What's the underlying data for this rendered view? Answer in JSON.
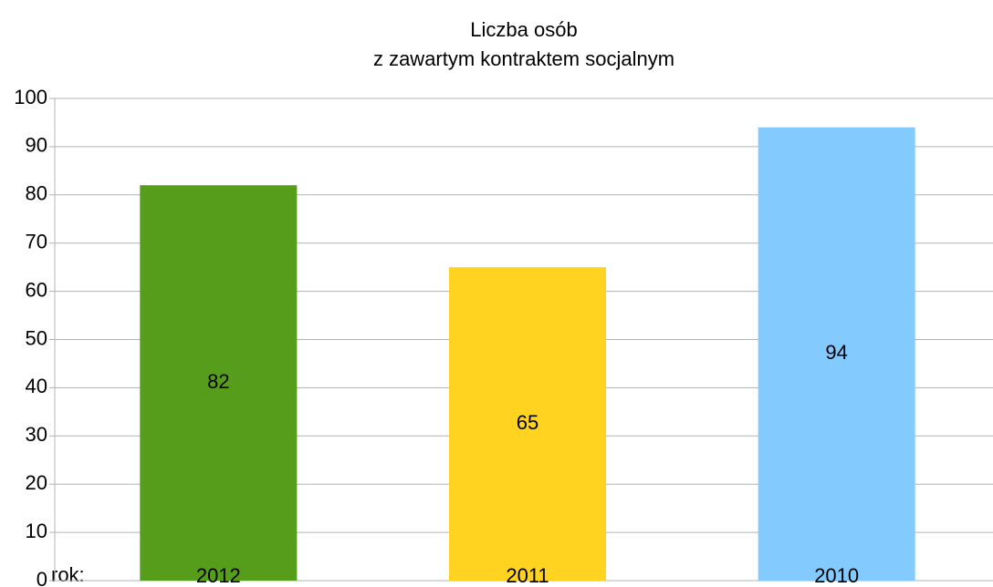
{
  "chart_data": {
    "type": "bar",
    "title": [
      "Liczba osób",
      "z zawartym kontraktem socjalnym"
    ],
    "x_label": "rok:",
    "categories": [
      "2012",
      "2011",
      "2010"
    ],
    "values": [
      82,
      65,
      94
    ],
    "colors": [
      "#579d1c",
      "#ffd320",
      "#83caff"
    ],
    "ylim": [
      0,
      100
    ],
    "yticks": [
      0,
      10,
      20,
      30,
      40,
      50,
      60,
      70,
      80,
      90,
      100
    ],
    "grid": true
  }
}
